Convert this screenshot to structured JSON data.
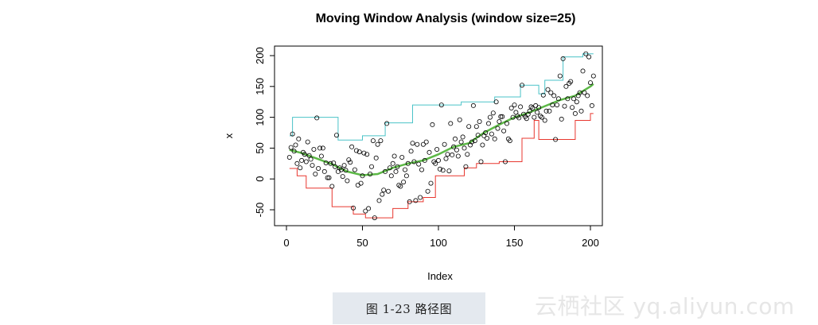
{
  "chart_data": {
    "type": "scatter",
    "title": "Moving Window Analysis (window size=25)",
    "xlabel": "Index",
    "ylabel": "x",
    "xlim": [
      0,
      205
    ],
    "ylim": [
      -70,
      205
    ],
    "xticks": [
      0,
      50,
      100,
      150,
      200
    ],
    "yticks": [
      -50,
      0,
      50,
      100,
      150,
      200
    ],
    "grid": false,
    "legend": "none",
    "colors": {
      "points": "#000000",
      "upper": "#4bc3c8",
      "lower": "#e8372f",
      "mean": "#5cb846"
    },
    "points": [
      [
        2,
        35
      ],
      [
        3,
        51
      ],
      [
        4,
        73
      ],
      [
        5,
        45
      ],
      [
        6,
        55
      ],
      [
        7,
        25
      ],
      [
        8,
        65
      ],
      [
        9,
        18
      ],
      [
        10,
        30
      ],
      [
        11,
        43
      ],
      [
        12,
        40
      ],
      [
        13,
        28
      ],
      [
        14,
        60
      ],
      [
        15,
        38
      ],
      [
        16,
        32
      ],
      [
        17,
        22
      ],
      [
        18,
        48
      ],
      [
        19,
        8
      ],
      [
        20,
        99
      ],
      [
        21,
        17
      ],
      [
        22,
        50
      ],
      [
        23,
        37
      ],
      [
        24,
        50
      ],
      [
        25,
        12
      ],
      [
        26,
        26
      ],
      [
        27,
        2
      ],
      [
        28,
        2
      ],
      [
        29,
        25
      ],
      [
        30,
        -12
      ],
      [
        31,
        26
      ],
      [
        32,
        20
      ],
      [
        33,
        71
      ],
      [
        34,
        12
      ],
      [
        35,
        18
      ],
      [
        36,
        15
      ],
      [
        37,
        4
      ],
      [
        38,
        22
      ],
      [
        39,
        14
      ],
      [
        40,
        -3
      ],
      [
        41,
        31
      ],
      [
        42,
        27
      ],
      [
        43,
        52
      ],
      [
        44,
        -47
      ],
      [
        45,
        15
      ],
      [
        46,
        46
      ],
      [
        47,
        -10
      ],
      [
        48,
        44
      ],
      [
        49,
        -7
      ],
      [
        50,
        5
      ],
      [
        51,
        42
      ],
      [
        52,
        -52
      ],
      [
        53,
        40
      ],
      [
        54,
        -48
      ],
      [
        55,
        8
      ],
      [
        56,
        20
      ],
      [
        57,
        62
      ],
      [
        58,
        -63
      ],
      [
        59,
        34
      ],
      [
        60,
        56
      ],
      [
        61,
        -35
      ],
      [
        62,
        62
      ],
      [
        63,
        -25
      ],
      [
        64,
        -18
      ],
      [
        65,
        12
      ],
      [
        66,
        90
      ],
      [
        67,
        -20
      ],
      [
        68,
        18
      ],
      [
        69,
        5
      ],
      [
        70,
        25
      ],
      [
        71,
        37
      ],
      [
        72,
        12
      ],
      [
        73,
        20
      ],
      [
        74,
        -10
      ],
      [
        75,
        -12
      ],
      [
        76,
        35
      ],
      [
        77,
        -5
      ],
      [
        78,
        15
      ],
      [
        79,
        5
      ],
      [
        80,
        25
      ],
      [
        81,
        -37
      ],
      [
        82,
        45
      ],
      [
        83,
        58
      ],
      [
        84,
        28
      ],
      [
        85,
        -35
      ],
      [
        86,
        56
      ],
      [
        87,
        24
      ],
      [
        88,
        -30
      ],
      [
        89,
        15
      ],
      [
        90,
        56
      ],
      [
        91,
        30
      ],
      [
        92,
        60
      ],
      [
        93,
        -20
      ],
      [
        94,
        43
      ],
      [
        95,
        -7
      ],
      [
        96,
        88
      ],
      [
        97,
        28
      ],
      [
        98,
        25
      ],
      [
        99,
        48
      ],
      [
        100,
        30
      ],
      [
        101,
        16
      ],
      [
        102,
        120
      ],
      [
        103,
        14
      ],
      [
        104,
        56
      ],
      [
        105,
        33
      ],
      [
        106,
        40
      ],
      [
        107,
        13
      ],
      [
        108,
        90
      ],
      [
        109,
        39
      ],
      [
        110,
        52
      ],
      [
        111,
        65
      ],
      [
        112,
        47
      ],
      [
        113,
        37
      ],
      [
        114,
        96
      ],
      [
        115,
        60
      ],
      [
        116,
        68
      ],
      [
        117,
        50
      ],
      [
        118,
        20
      ],
      [
        119,
        40
      ],
      [
        120,
        85
      ],
      [
        121,
        55
      ],
      [
        122,
        60
      ],
      [
        123,
        119
      ],
      [
        124,
        62
      ],
      [
        125,
        85
      ],
      [
        126,
        71
      ],
      [
        127,
        93
      ],
      [
        128,
        28
      ],
      [
        129,
        55
      ],
      [
        130,
        70
      ],
      [
        131,
        75
      ],
      [
        132,
        66
      ],
      [
        133,
        90
      ],
      [
        134,
        100
      ],
      [
        135,
        73
      ],
      [
        136,
        107
      ],
      [
        137,
        65
      ],
      [
        138,
        125
      ],
      [
        139,
        82
      ],
      [
        140,
        93
      ],
      [
        141,
        101
      ],
      [
        142,
        101
      ],
      [
        143,
        78
      ],
      [
        144,
        28
      ],
      [
        145,
        90
      ],
      [
        146,
        65
      ],
      [
        147,
        62
      ],
      [
        148,
        115
      ],
      [
        149,
        100
      ],
      [
        150,
        120
      ],
      [
        151,
        108
      ],
      [
        152,
        102
      ],
      [
        153,
        99
      ],
      [
        154,
        117
      ],
      [
        155,
        152
      ],
      [
        156,
        105
      ],
      [
        157,
        101
      ],
      [
        158,
        98
      ],
      [
        159,
        105
      ],
      [
        160,
        110
      ],
      [
        161,
        117
      ],
      [
        162,
        115
      ],
      [
        163,
        100
      ],
      [
        164,
        119
      ],
      [
        165,
        108
      ],
      [
        166,
        116
      ],
      [
        167,
        102
      ],
      [
        168,
        100
      ],
      [
        169,
        136
      ],
      [
        170,
        95
      ],
      [
        171,
        110
      ],
      [
        172,
        145
      ],
      [
        173,
        110
      ],
      [
        174,
        140
      ],
      [
        175,
        120
      ],
      [
        176,
        135
      ],
      [
        177,
        64
      ],
      [
        178,
        120
      ],
      [
        179,
        130
      ],
      [
        180,
        167
      ],
      [
        181,
        97
      ],
      [
        182,
        195
      ],
      [
        183,
        118
      ],
      [
        184,
        150
      ],
      [
        185,
        130
      ],
      [
        186,
        155
      ],
      [
        187,
        158
      ],
      [
        188,
        116
      ],
      [
        189,
        130
      ],
      [
        190,
        106
      ],
      [
        191,
        125
      ],
      [
        192,
        135
      ],
      [
        193,
        140
      ],
      [
        194,
        110
      ],
      [
        195,
        175
      ],
      [
        196,
        140
      ],
      [
        197,
        203
      ],
      [
        198,
        135
      ],
      [
        199,
        198
      ],
      [
        200,
        156
      ],
      [
        201,
        119
      ],
      [
        202,
        167
      ]
    ],
    "upper": [
      [
        2,
        70
      ],
      [
        4,
        70
      ],
      [
        4,
        100
      ],
      [
        34,
        100
      ],
      [
        34,
        63
      ],
      [
        50,
        63
      ],
      [
        50,
        70
      ],
      [
        65,
        70
      ],
      [
        65,
        91
      ],
      [
        83,
        91
      ],
      [
        83,
        120
      ],
      [
        115,
        120
      ],
      [
        115,
        125
      ],
      [
        137,
        125
      ],
      [
        137,
        133
      ],
      [
        154,
        133
      ],
      [
        154,
        152
      ],
      [
        166,
        152
      ],
      [
        166,
        138
      ],
      [
        170,
        138
      ],
      [
        170,
        160
      ],
      [
        182,
        160
      ],
      [
        182,
        198
      ],
      [
        195,
        198
      ],
      [
        195,
        203
      ],
      [
        202,
        203
      ]
    ],
    "lower": [
      [
        2,
        17
      ],
      [
        7,
        17
      ],
      [
        7,
        5
      ],
      [
        13,
        5
      ],
      [
        13,
        -15
      ],
      [
        30,
        -15
      ],
      [
        30,
        -45
      ],
      [
        44,
        -45
      ],
      [
        44,
        -57
      ],
      [
        52,
        -57
      ],
      [
        52,
        -63
      ],
      [
        70,
        -63
      ],
      [
        70,
        -48
      ],
      [
        80,
        -48
      ],
      [
        80,
        -37
      ],
      [
        90,
        -37
      ],
      [
        90,
        -30
      ],
      [
        98,
        -30
      ],
      [
        98,
        5
      ],
      [
        117,
        5
      ],
      [
        117,
        18
      ],
      [
        125,
        18
      ],
      [
        125,
        25
      ],
      [
        140,
        25
      ],
      [
        140,
        28
      ],
      [
        155,
        28
      ],
      [
        155,
        66
      ],
      [
        163,
        66
      ],
      [
        163,
        95
      ],
      [
        166,
        95
      ],
      [
        166,
        64
      ],
      [
        190,
        64
      ],
      [
        190,
        95
      ],
      [
        200,
        95
      ],
      [
        200,
        106
      ],
      [
        202,
        106
      ]
    ],
    "mean": [
      [
        2,
        47
      ],
      [
        10,
        42
      ],
      [
        20,
        33
      ],
      [
        30,
        24
      ],
      [
        40,
        12
      ],
      [
        50,
        6
      ],
      [
        60,
        8
      ],
      [
        70,
        18
      ],
      [
        80,
        25
      ],
      [
        90,
        30
      ],
      [
        100,
        40
      ],
      [
        110,
        52
      ],
      [
        120,
        58
      ],
      [
        130,
        75
      ],
      [
        140,
        88
      ],
      [
        150,
        100
      ],
      [
        160,
        108
      ],
      [
        170,
        118
      ],
      [
        180,
        128
      ],
      [
        190,
        135
      ],
      [
        200,
        150
      ],
      [
        202,
        154
      ]
    ]
  },
  "caption": "图 1-23    路径图",
  "watermark": "云栖社区 yq.aliyun.com"
}
